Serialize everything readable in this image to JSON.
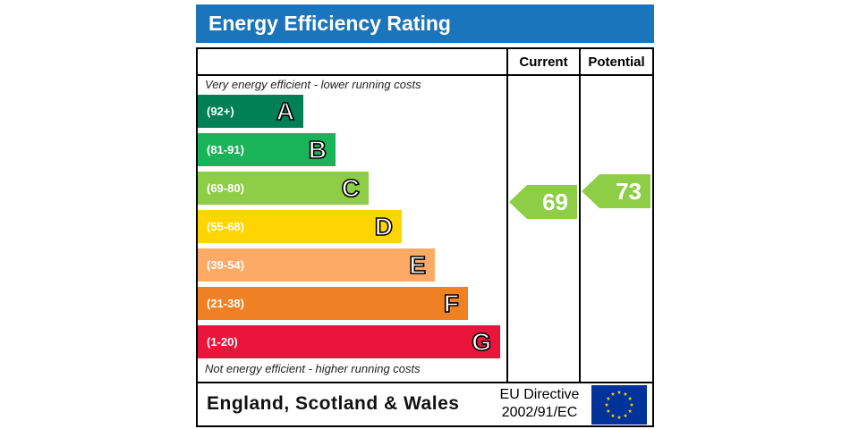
{
  "header": {
    "title": "Energy Efficiency Rating",
    "color": "#1b75bc"
  },
  "columns": {
    "current": "Current",
    "potential": "Potential"
  },
  "notes": {
    "top": "Very energy efficient - lower running costs",
    "bottom": "Not energy efficient - higher running costs"
  },
  "chart_data": {
    "type": "bar",
    "bands": [
      {
        "letter": "A",
        "range": "(92+)",
        "color": "#008054"
      },
      {
        "letter": "B",
        "range": "(81-91)",
        "color": "#19b459"
      },
      {
        "letter": "C",
        "range": "(69-80)",
        "color": "#8dce46"
      },
      {
        "letter": "D",
        "range": "(55-68)",
        "color": "#ffd500"
      },
      {
        "letter": "E",
        "range": "(39-54)",
        "color": "#fcaa65"
      },
      {
        "letter": "F",
        "range": "(21-38)",
        "color": "#ef8023"
      },
      {
        "letter": "G",
        "range": "(1-20)",
        "color": "#e9153b"
      }
    ],
    "current": {
      "value": 69,
      "band": "C",
      "color": "#8dce46"
    },
    "potential": {
      "value": 73,
      "band": "C",
      "color": "#8dce46"
    }
  },
  "footer": {
    "region": "England, Scotland & Wales",
    "directive_line1": "EU Directive",
    "directive_line2": "2002/91/EC",
    "flag_color": "#003399",
    "star_color": "#ffcc00"
  }
}
